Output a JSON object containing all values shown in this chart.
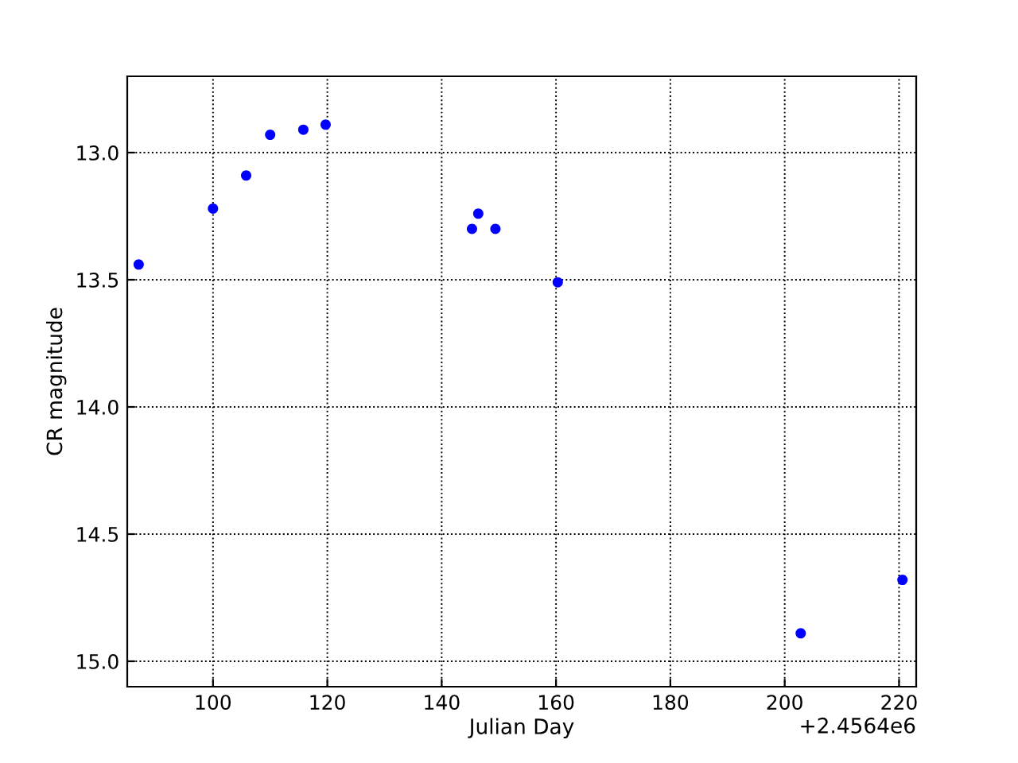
{
  "chart_data": {
    "type": "scatter",
    "xlabel": "Julian Day",
    "ylabel": "CR magnitude",
    "x": [
      87,
      100,
      105.8,
      110,
      115.8,
      119.7,
      145.3,
      146.4,
      149.4,
      160.3,
      202.8,
      220.6
    ],
    "series": [
      {
        "color": "#0000ff",
        "values": [
          13.44,
          13.22,
          13.09,
          12.93,
          12.91,
          12.89,
          13.3,
          13.24,
          13.3,
          13.51,
          14.89,
          14.68
        ]
      }
    ],
    "xlim": [
      85,
      223
    ],
    "xticks": [
      100,
      120,
      140,
      160,
      180,
      200,
      220
    ],
    "ylim": [
      15.1,
      12.7
    ],
    "yticks": [
      {
        "value": 13.0,
        "label": "13.0"
      },
      {
        "value": 13.5,
        "label": "13.5"
      },
      {
        "value": 14.0,
        "label": "14.0"
      },
      {
        "value": 14.5,
        "label": "14.5"
      },
      {
        "value": 15.0,
        "label": "15.0"
      }
    ],
    "annotations": [
      "+2.4564e6"
    ],
    "grid": true,
    "marker": "circle"
  }
}
